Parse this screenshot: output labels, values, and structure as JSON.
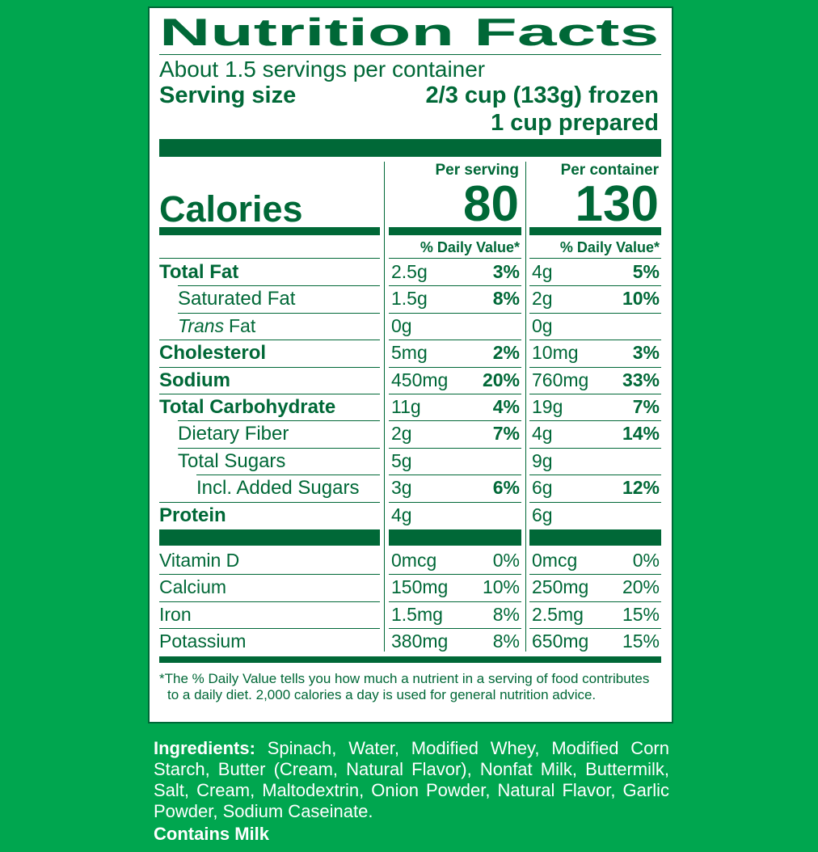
{
  "title": "Nutrition Facts",
  "servings": "About 1.5 servings per container",
  "serving_size_label": "Serving size",
  "serving_size": [
    "2/3 cup (133g) frozen",
    "1 cup prepared"
  ],
  "calories_label": "Calories",
  "columns": [
    {
      "heading": "Per serving",
      "calories": "80",
      "dv_heading": "% Daily Value*"
    },
    {
      "heading": "Per container",
      "calories": "130",
      "dv_heading": "% Daily Value*"
    }
  ],
  "nutrients": [
    {
      "name": "Total Fat",
      "bold": true,
      "indent": 0,
      "values": [
        [
          "2.5g",
          "3%"
        ],
        [
          "4g",
          "5%"
        ]
      ]
    },
    {
      "name": "Saturated Fat",
      "bold": false,
      "indent": 1,
      "values": [
        [
          "1.5g",
          "8%"
        ],
        [
          "2g",
          "10%"
        ]
      ]
    },
    {
      "name_italic": "Trans",
      "name": "Fat",
      "bold": false,
      "indent": 1,
      "values": [
        [
          "0g"
        ],
        [
          "0g"
        ]
      ]
    },
    {
      "name": "Cholesterol",
      "bold": true,
      "indent": 0,
      "values": [
        [
          "5mg",
          "2%"
        ],
        [
          "10mg",
          "3%"
        ]
      ]
    },
    {
      "name": "Sodium",
      "bold": true,
      "indent": 0,
      "values": [
        [
          "450mg",
          "20%"
        ],
        [
          "760mg",
          "33%"
        ]
      ]
    },
    {
      "name": "Total Carbohydrate",
      "bold": true,
      "indent": 0,
      "values": [
        [
          "11g",
          "4%"
        ],
        [
          "19g",
          "7%"
        ]
      ]
    },
    {
      "name": "Dietary Fiber",
      "bold": false,
      "indent": 1,
      "values": [
        [
          "2g",
          "7%"
        ],
        [
          "4g",
          "14%"
        ]
      ]
    },
    {
      "name": "Total Sugars",
      "bold": false,
      "indent": 1,
      "values": [
        [
          "5g"
        ],
        [
          "9g"
        ]
      ]
    },
    {
      "name": "Incl. Added Sugars",
      "bold": false,
      "indent": 2,
      "values": [
        [
          "3g",
          "6%"
        ],
        [
          "6g",
          "12%"
        ]
      ]
    },
    {
      "name": "Protein",
      "bold": true,
      "indent": 0,
      "values": [
        [
          "4g"
        ],
        [
          "6g"
        ]
      ]
    }
  ],
  "vitamins": [
    {
      "name": "Vitamin D",
      "values": [
        [
          "0mcg",
          "0%"
        ],
        [
          "0mcg",
          "0%"
        ]
      ]
    },
    {
      "name": "Calcium",
      "values": [
        [
          "150mg",
          "10%"
        ],
        [
          "250mg",
          "20%"
        ]
      ]
    },
    {
      "name": "Iron",
      "values": [
        [
          "1.5mg",
          "8%"
        ],
        [
          "2.5mg",
          "15%"
        ]
      ]
    },
    {
      "name": "Potassium",
      "values": [
        [
          "380mg",
          "8%"
        ],
        [
          "650mg",
          "15%"
        ]
      ]
    }
  ],
  "footnote": "*The % Daily Value tells you how much a nutrient in a serving of food contributes to a daily diet. 2,000 calories a day is used for general nutrition advice.",
  "ingredients_label": "Ingredients:",
  "ingredients": "Spinach, Water, Modified Whey, Modified Corn Starch, Butter (Cream, Natural Flavor), Nonfat Milk, Buttermilk, Salt, Cream, Maltodextrin, Onion Powder, Natural Flavor, Garlic Powder, Sodium Caseinate.",
  "allergen": "Contains Milk"
}
